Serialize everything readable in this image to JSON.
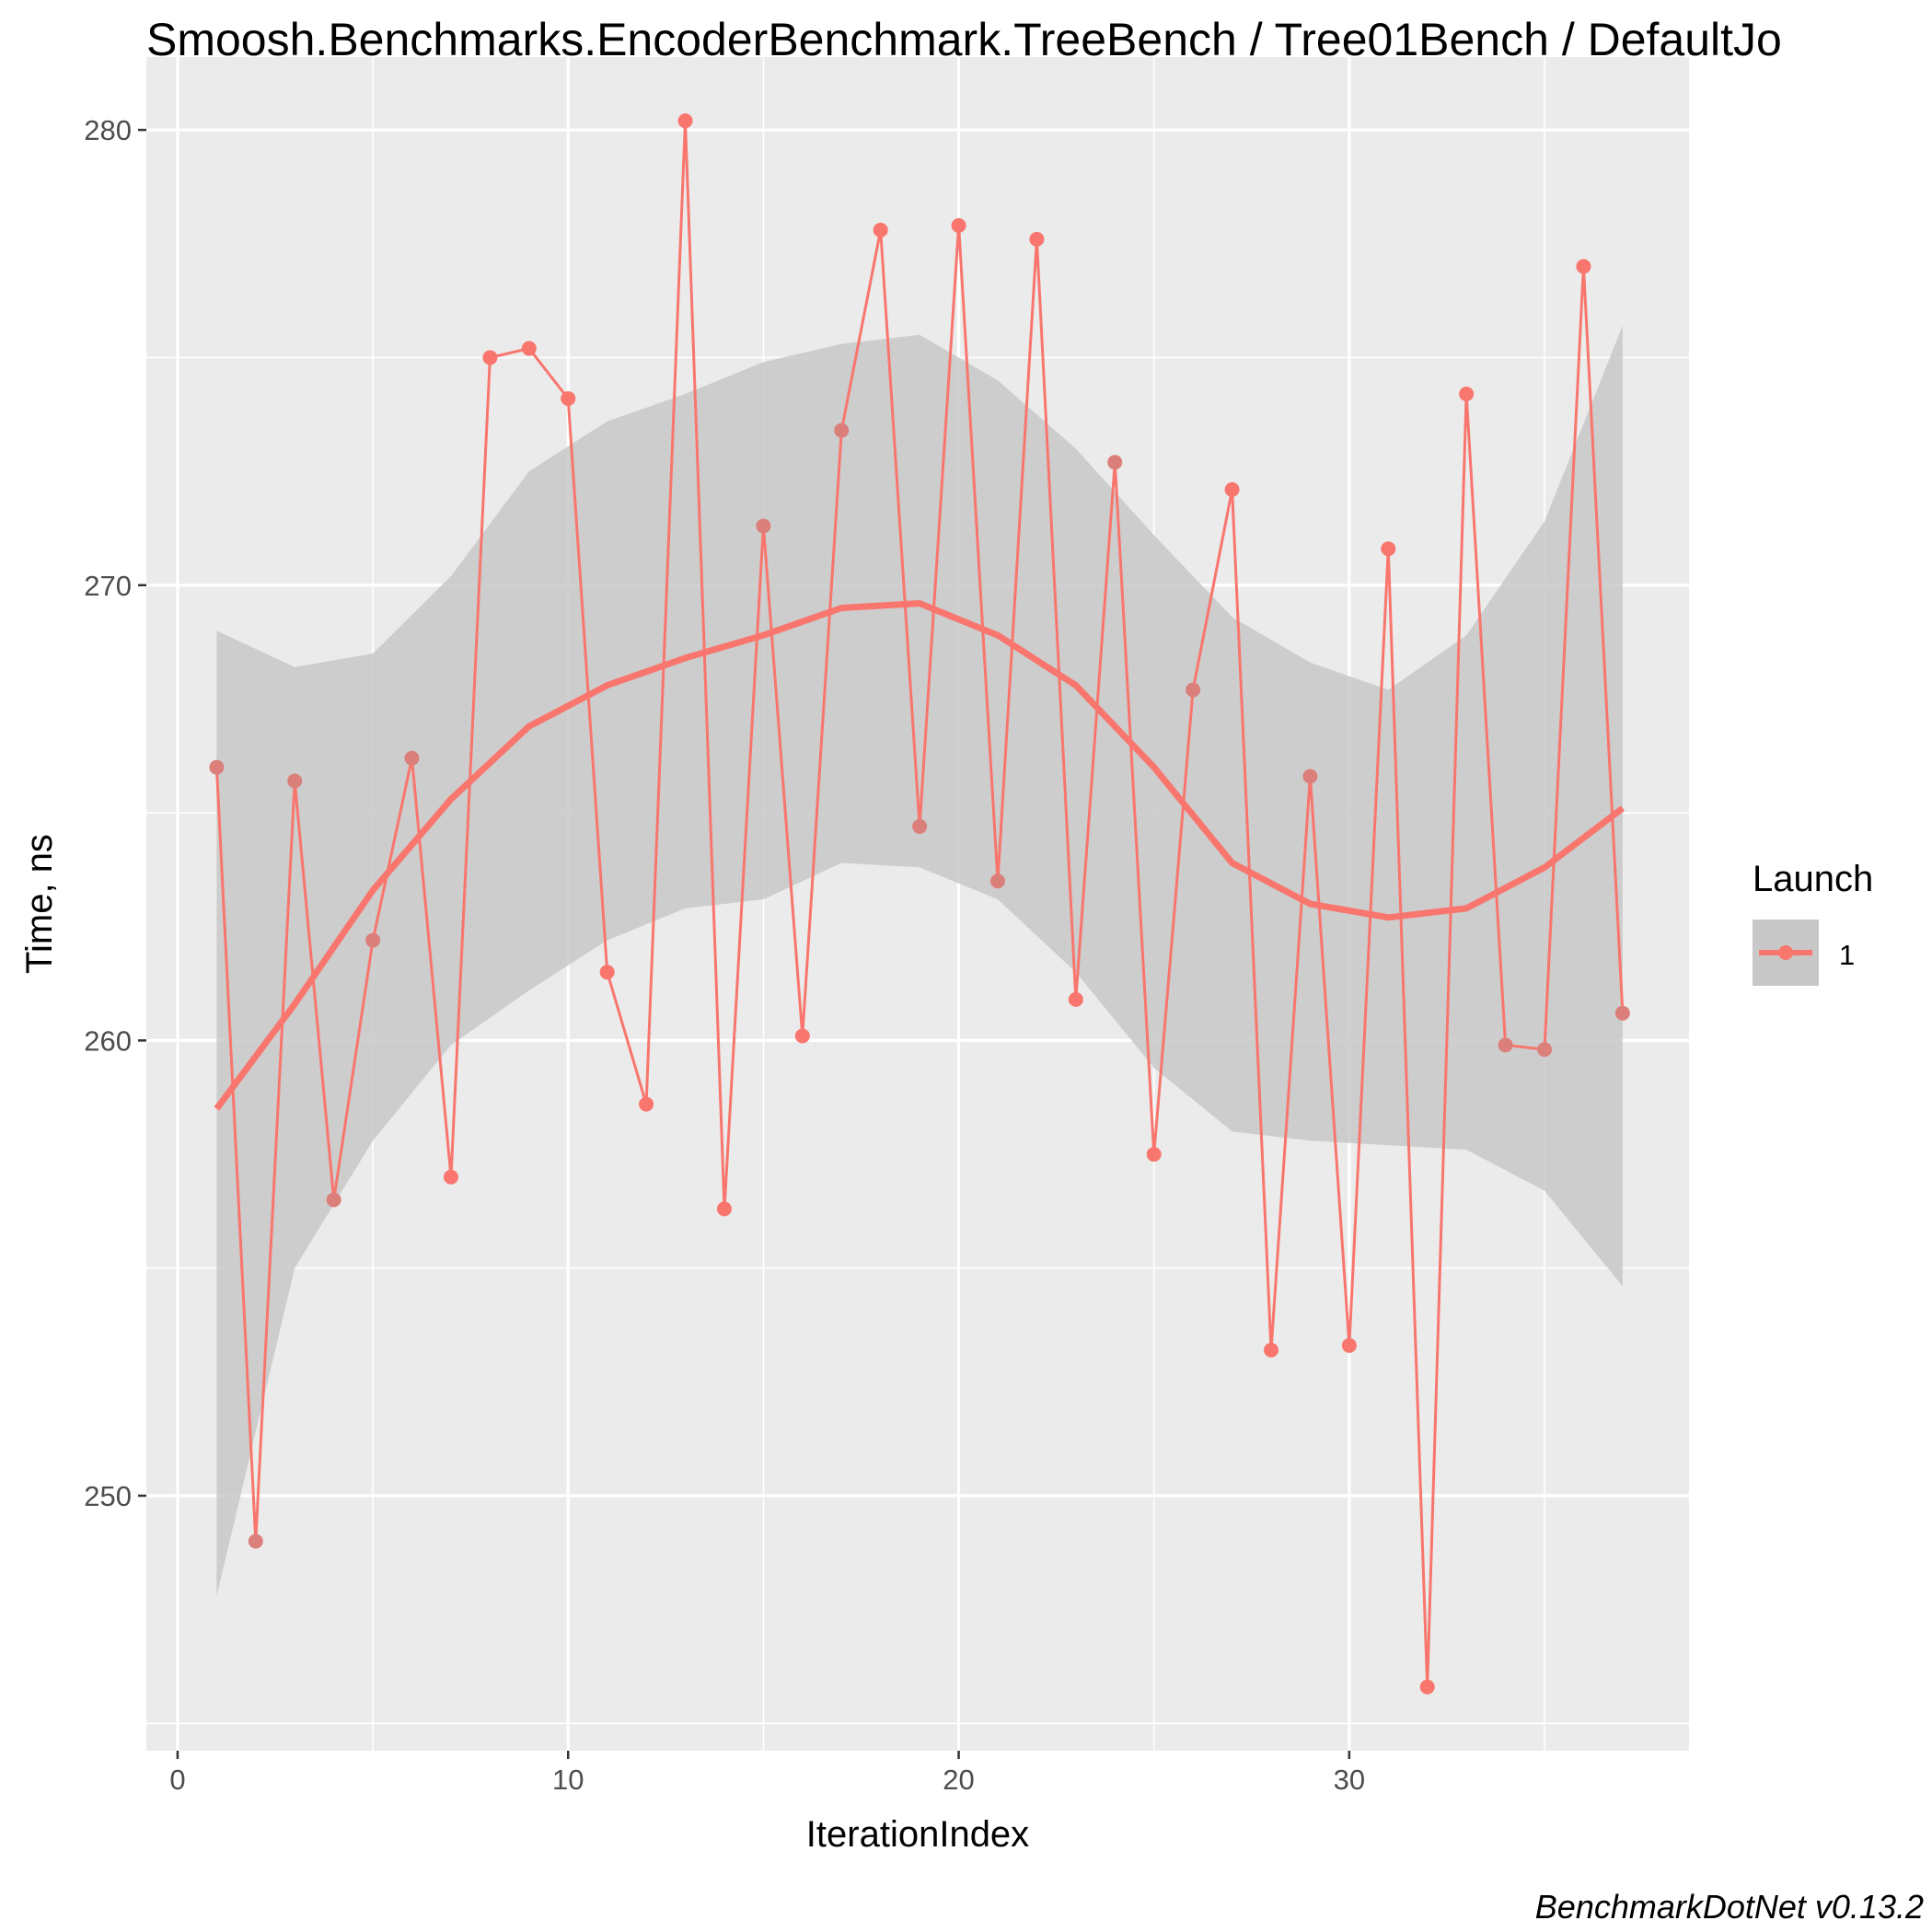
{
  "colors": {
    "panel": "#ebebeb",
    "grid_major": "#ffffff",
    "ribbon": "#c8c8c8",
    "series": "#f8766d",
    "series_dim": "#db7f7b",
    "tick": "#333333"
  },
  "chart_data": {
    "type": "line",
    "title": "Smoosh.Benchmarks.EncoderBenchmark.TreeBench / Tree01Bench / DefaultJo",
    "xlabel": "IterationIndex",
    "ylabel": "Time, ns",
    "xlim": [
      -0.8,
      38.7
    ],
    "ylim": [
      244.4,
      281.6
    ],
    "xticks": [
      0,
      10,
      20,
      30
    ],
    "yticks": [
      250,
      260,
      270,
      280
    ],
    "x_minor": [
      5,
      15,
      25,
      35
    ],
    "y_minor": [
      245,
      255,
      265,
      275
    ],
    "grid": true,
    "legend": {
      "title": "Launch",
      "placement": "right",
      "entries": [
        "1"
      ]
    },
    "caption": "BenchmarkDotNet v0.13.2",
    "series": [
      {
        "name": "1",
        "x": [
          1,
          2,
          3,
          4,
          5,
          6,
          7,
          8,
          9,
          10,
          11,
          12,
          13,
          14,
          15,
          16,
          17,
          18,
          19,
          20,
          21,
          22,
          23,
          24,
          25,
          26,
          27,
          28,
          29,
          30,
          31,
          32,
          33,
          34,
          35,
          36,
          37
        ],
        "values": [
          266.0,
          249.0,
          265.7,
          256.5,
          262.2,
          266.2,
          257.0,
          275.0,
          275.2,
          274.1,
          261.5,
          258.6,
          280.2,
          256.3,
          271.3,
          260.1,
          273.4,
          277.8,
          264.7,
          277.9,
          263.5,
          277.6,
          260.9,
          272.7,
          257.5,
          267.7,
          272.1,
          253.2,
          265.8,
          253.3,
          270.8,
          245.8,
          274.2,
          259.9,
          259.8,
          277.0,
          260.6
        ]
      }
    ],
    "smooth": {
      "x": [
        1,
        3,
        5,
        7,
        9,
        11,
        13,
        15,
        17,
        19,
        21,
        23,
        25,
        27,
        29,
        31,
        33,
        35,
        37
      ],
      "fit": [
        258.5,
        260.8,
        263.3,
        265.3,
        266.9,
        267.8,
        268.4,
        268.9,
        269.5,
        269.6,
        268.9,
        267.8,
        266.0,
        263.9,
        263.0,
        262.7,
        262.9,
        263.8,
        265.1
      ],
      "lower": [
        247.8,
        255.0,
        257.8,
        259.9,
        261.1,
        262.2,
        262.9,
        263.1,
        263.9,
        263.8,
        263.1,
        261.5,
        259.4,
        258.0,
        257.8,
        257.7,
        257.6,
        256.7,
        254.6
      ],
      "upper": [
        269.0,
        268.2,
        268.5,
        270.2,
        272.5,
        273.6,
        274.2,
        274.9,
        275.3,
        275.5,
        274.5,
        273.0,
        271.1,
        269.3,
        268.3,
        267.7,
        268.9,
        271.4,
        275.7
      ]
    }
  }
}
